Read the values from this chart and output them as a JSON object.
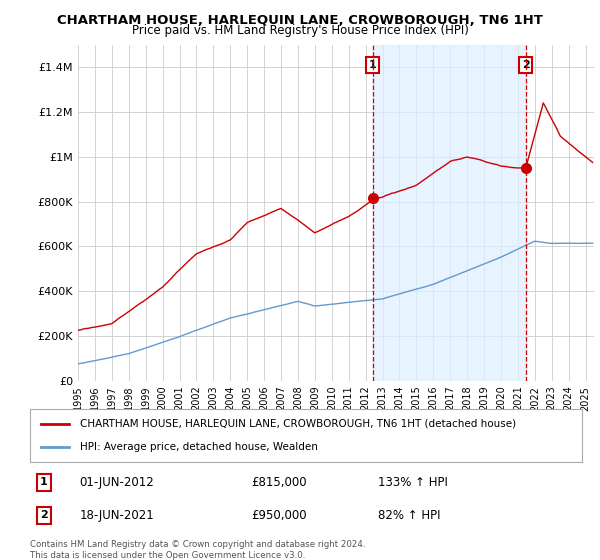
{
  "title": "CHARTHAM HOUSE, HARLEQUIN LANE, CROWBOROUGH, TN6 1HT",
  "subtitle": "Price paid vs. HM Land Registry's House Price Index (HPI)",
  "ylabel_ticks": [
    "£0",
    "£200K",
    "£400K",
    "£600K",
    "£800K",
    "£1M",
    "£1.2M",
    "£1.4M"
  ],
  "ytick_values": [
    0,
    200000,
    400000,
    600000,
    800000,
    1000000,
    1200000,
    1400000
  ],
  "ylim": [
    0,
    1500000
  ],
  "sale1": {
    "date_num": 2012.42,
    "price": 815000,
    "label": "1",
    "date_str": "01-JUN-2012",
    "hpi_pct": "133% ↑ HPI"
  },
  "sale2": {
    "date_num": 2021.46,
    "price": 950000,
    "label": "2",
    "date_str": "18-JUN-2021",
    "hpi_pct": "82% ↑ HPI"
  },
  "legend_house": "CHARTHAM HOUSE, HARLEQUIN LANE, CROWBOROUGH, TN6 1HT (detached house)",
  "legend_hpi": "HPI: Average price, detached house, Wealden",
  "footnote": "Contains HM Land Registry data © Crown copyright and database right 2024.\nThis data is licensed under the Open Government Licence v3.0.",
  "house_color": "#cc0000",
  "hpi_color": "#6699cc",
  "shade_color": "#ddeeff",
  "dashed_color": "#cc0000",
  "background_color": "#ffffff",
  "grid_color": "#cccccc",
  "xmin": 1995,
  "xmax": 2025.5
}
